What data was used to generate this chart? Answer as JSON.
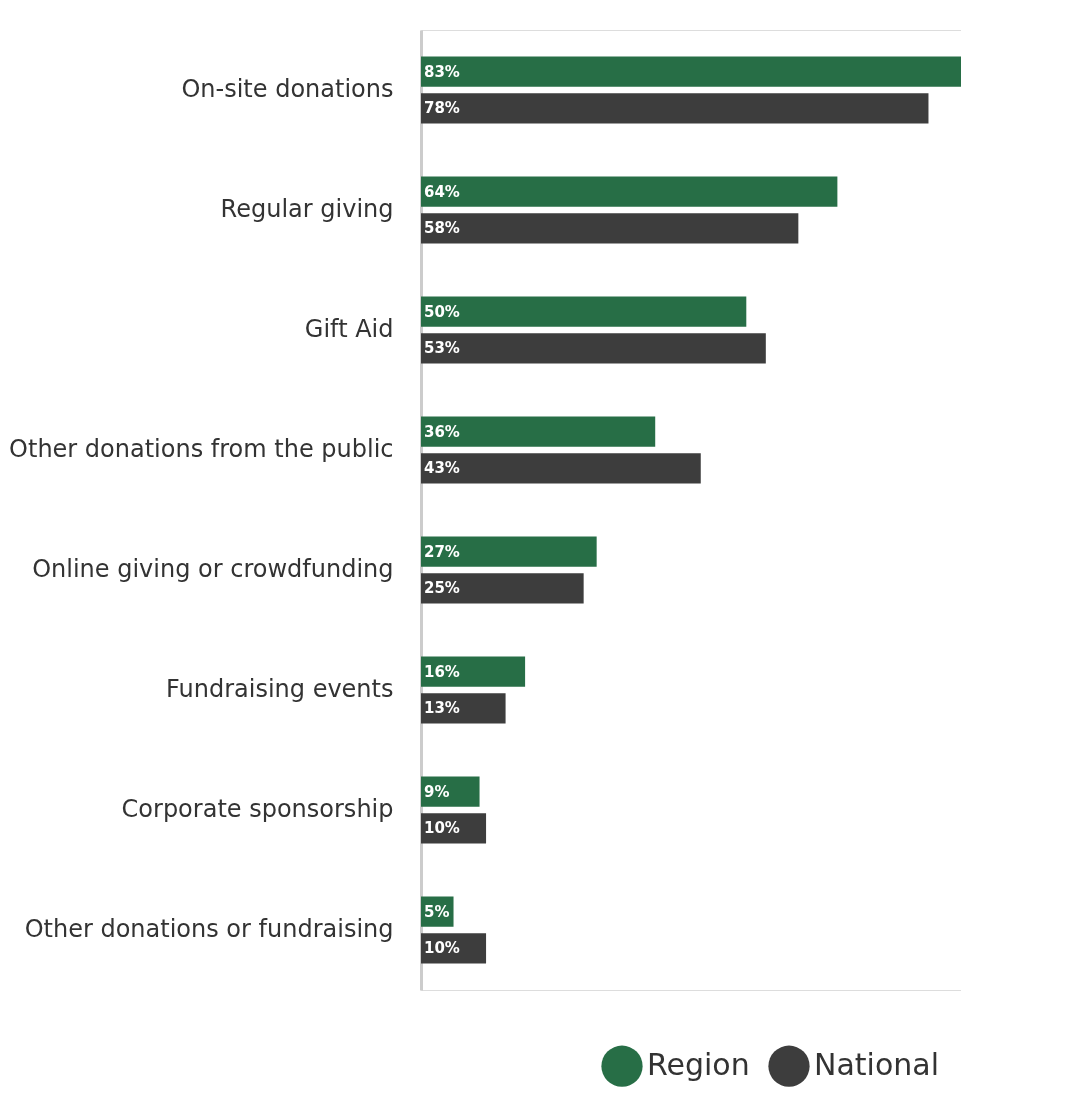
{
  "chart_data": {
    "type": "bar",
    "orientation": "horizontal",
    "categories": [
      "On-site donations",
      "Regular giving",
      "Gift Aid",
      "Other donations from the public",
      "Online giving or crowdfunding",
      "Fundraising events",
      "Corporate sponsorship",
      "Other donations or fundraising"
    ],
    "series": [
      {
        "name": "Region",
        "color": "#276e46",
        "values": [
          83,
          64,
          50,
          36,
          27,
          16,
          9,
          5
        ],
        "value_labels": [
          "83%",
          "64%",
          "50%",
          "36%",
          "27%",
          "16%",
          "9%",
          "5%"
        ]
      },
      {
        "name": "National",
        "color": "#3d3d3d",
        "values": [
          78,
          58,
          53,
          43,
          25,
          13,
          10,
          10
        ],
        "value_labels": [
          "78%",
          "58%",
          "53%",
          "43%",
          "25%",
          "13%",
          "10%",
          "10%"
        ]
      }
    ],
    "grid": false,
    "legend": "bottom right"
  }
}
